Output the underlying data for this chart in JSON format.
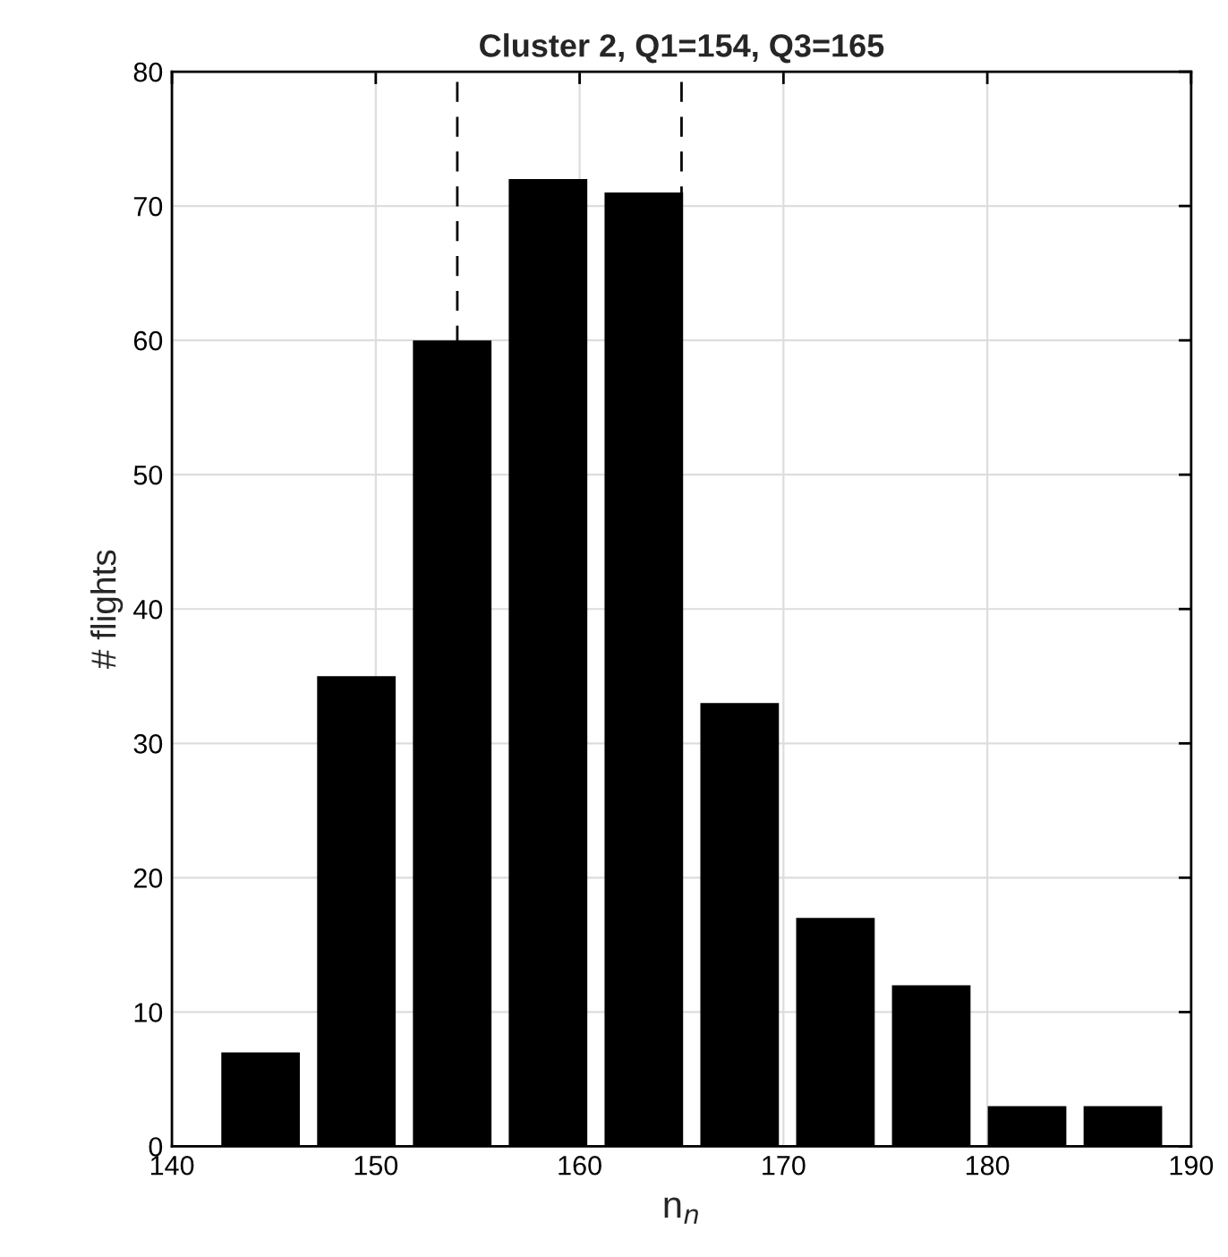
{
  "chart_data": {
    "type": "histogram",
    "title": "Cluster 2, Q1=154, Q3=165",
    "xlabel": "n$_{n}$",
    "ylabel": "# flights",
    "bins": [
      142,
      146.7,
      151.4,
      156.1,
      160.8,
      165.5,
      170.2,
      174.9,
      179.6,
      184.3,
      189
    ],
    "values": [
      7,
      35,
      60,
      72,
      71,
      33,
      17,
      12,
      3,
      3
    ],
    "color": "#000000",
    "xlim": [
      140,
      190
    ],
    "xticks": [
      140,
      150,
      160,
      170,
      180,
      190
    ],
    "ylim": [
      0,
      80
    ],
    "yticks": [
      0,
      10,
      20,
      30,
      40,
      50,
      60,
      70,
      80
    ],
    "grid": true,
    "ref_lines": [
      {
        "axis": "x",
        "value": 154,
        "label": null,
        "color": "#000000",
        "line_style": "dashed"
      },
      {
        "axis": "x",
        "value": 165,
        "label": null,
        "color": "#000000",
        "line_style": "dashed"
      }
    ]
  }
}
